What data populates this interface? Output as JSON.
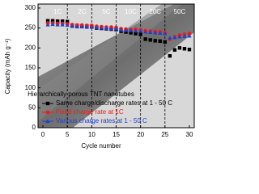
{
  "chart_data": {
    "type": "scatter",
    "inset_text": "Hierarchically porous TNT nanotubes",
    "x_label": "Cycle number",
    "y_label": "Capacity (mAh g⁻¹)",
    "x": [
      1,
      2,
      3,
      4,
      5,
      6,
      7,
      8,
      9,
      10,
      11,
      12,
      13,
      14,
      15,
      16,
      17,
      18,
      19,
      20,
      21,
      22,
      23,
      24,
      25,
      26,
      27,
      28,
      29,
      30
    ],
    "series": [
      {
        "name": "Same charge/discharge rates at 1 - 50 C",
        "color": "#000000",
        "marker": "square",
        "values": [
          268,
          268,
          267,
          267,
          266,
          257,
          256,
          255,
          255,
          254,
          250,
          249,
          248,
          247,
          246,
          242,
          240,
          238,
          236,
          234,
          222,
          220,
          218,
          217,
          215,
          180,
          195,
          200,
          198,
          196
        ]
      },
      {
        "name": "Fixed charge rate at 1C",
        "color": "#e8201c",
        "marker": "circle",
        "values": [
          262,
          262,
          261,
          261,
          260,
          258,
          257,
          257,
          256,
          256,
          254,
          253,
          252,
          252,
          251,
          248,
          247,
          246,
          246,
          245,
          243,
          242,
          241,
          240,
          238,
          222,
          228,
          232,
          234,
          236
        ]
      },
      {
        "name": "Various charge rates at 1 - 50 C",
        "color": "#1f3fd0",
        "marker": "triangle",
        "values": [
          258,
          259,
          258,
          258,
          257,
          254,
          253,
          253,
          252,
          252,
          251,
          250,
          249,
          248,
          248,
          245,
          244,
          244,
          243,
          242,
          240,
          239,
          238,
          237,
          236,
          225,
          226,
          228,
          229,
          230
        ]
      }
    ],
    "rate_boundaries": [
      5,
      10,
      15,
      20,
      25
    ],
    "annotations": [
      {
        "text": "1C",
        "x": 3
      },
      {
        "text": "2C",
        "x": 8
      },
      {
        "text": "5C",
        "x": 13
      },
      {
        "text": "10C",
        "x": 18
      },
      {
        "text": "20C",
        "x": 23
      },
      {
        "text": "50C",
        "x": 28
      }
    ],
    "xlim": [
      -1,
      31
    ],
    "xticks": [
      0,
      5,
      10,
      15,
      20,
      25,
      30
    ],
    "ylim": [
      0,
      310
    ],
    "yticks": [
      0,
      50,
      100,
      150,
      200,
      250,
      300
    ]
  }
}
